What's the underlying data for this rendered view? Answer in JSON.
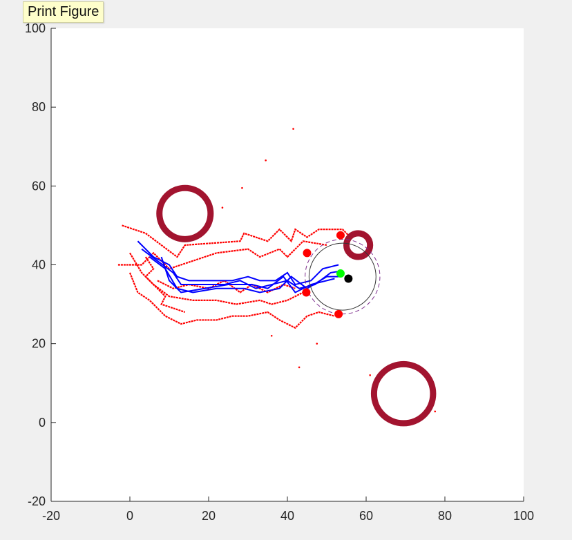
{
  "tooltip": {
    "text": "Print Figure"
  },
  "chart_data": {
    "type": "scatter",
    "title": "",
    "xlabel": "",
    "ylabel": "",
    "xlim": [
      -20,
      100
    ],
    "ylim": [
      -20,
      100
    ],
    "xticks": [
      -20,
      0,
      20,
      40,
      60,
      80,
      100
    ],
    "yticks": [
      -20,
      0,
      20,
      40,
      60,
      80,
      100
    ],
    "grid": false,
    "colors": {
      "red": "#ff0000",
      "blue": "#0000ff",
      "obstacle": "#a2142f",
      "green": "#00ff00",
      "black": "#000000",
      "circle": "#333333",
      "purple": "#7e2f8e"
    },
    "obstacles": [
      {
        "cx": 14,
        "cy": 53,
        "r": 6.5
      },
      {
        "cx": 58,
        "cy": 45,
        "r": 3
      },
      {
        "cx": 69.5,
        "cy": 7.3,
        "r": 7.5
      }
    ],
    "sensor_circle": {
      "cx": 54,
      "cy": 37,
      "r": 8.5
    },
    "sensor_arc": {
      "cx": 54,
      "cy": 37,
      "r": 9.5
    },
    "robot": {
      "x": 55.5,
      "y": 36.5
    },
    "goal": {
      "x": 53.5,
      "y": 37.8
    },
    "markers": [
      [
        53.5,
        47.5
      ],
      [
        45,
        43
      ],
      [
        44.8,
        33
      ],
      [
        53,
        27.5
      ]
    ],
    "stray_points": [
      [
        41.5,
        74.5
      ],
      [
        34.5,
        66.5
      ],
      [
        28.5,
        59.5
      ],
      [
        23.5,
        54.5
      ],
      [
        36,
        22
      ],
      [
        47.5,
        20
      ],
      [
        43,
        14
      ],
      [
        61,
        12
      ],
      [
        77.5,
        2.8
      ]
    ],
    "red_lines": [
      [
        [
          -2,
          50
        ],
        [
          4,
          48
        ],
        [
          8,
          45
        ],
        [
          12,
          42
        ],
        [
          14,
          45
        ],
        [
          28,
          46
        ],
        [
          29,
          48
        ],
        [
          35,
          46
        ],
        [
          38,
          49
        ],
        [
          41,
          46
        ],
        [
          42,
          49
        ],
        [
          45,
          47
        ],
        [
          48,
          49
        ],
        [
          54,
          49
        ],
        [
          56,
          47
        ]
      ],
      [
        [
          -3,
          40
        ],
        [
          3,
          40
        ],
        [
          6,
          43
        ],
        [
          10,
          39
        ],
        [
          16,
          41
        ],
        [
          22,
          43
        ],
        [
          30,
          44
        ],
        [
          33,
          42
        ],
        [
          38,
          44
        ],
        [
          40,
          42
        ],
        [
          44,
          46
        ],
        [
          50,
          45
        ]
      ],
      [
        [
          0,
          38
        ],
        [
          2,
          33
        ],
        [
          5,
          31
        ],
        [
          7,
          29
        ],
        [
          9,
          27
        ],
        [
          13,
          25
        ],
        [
          17,
          26
        ],
        [
          22,
          26
        ],
        [
          26,
          27
        ],
        [
          30,
          27
        ],
        [
          35,
          28
        ],
        [
          38,
          26
        ],
        [
          42,
          24
        ],
        [
          45,
          27
        ],
        [
          48,
          28
        ],
        [
          52,
          27
        ]
      ],
      [
        [
          0,
          43
        ],
        [
          3,
          38
        ],
        [
          6,
          35
        ],
        [
          10,
          32
        ],
        [
          16,
          31
        ],
        [
          22,
          31
        ],
        [
          27,
          30
        ],
        [
          33,
          31
        ],
        [
          36,
          30
        ],
        [
          40,
          31
        ],
        [
          44,
          33
        ]
      ],
      [
        [
          7,
          36
        ],
        [
          11,
          34
        ],
        [
          15,
          35
        ],
        [
          20,
          34
        ],
        [
          24,
          36
        ],
        [
          28,
          33
        ],
        [
          31,
          35
        ],
        [
          35,
          33
        ],
        [
          39,
          35
        ],
        [
          42,
          34
        ]
      ],
      [
        [
          4,
          42
        ],
        [
          6,
          39
        ],
        [
          4,
          37
        ],
        [
          7,
          34
        ],
        [
          9,
          32
        ],
        [
          8,
          30
        ],
        [
          11,
          29
        ],
        [
          14,
          28
        ]
      ]
    ],
    "blue_lines": [
      [
        [
          2,
          46
        ],
        [
          6,
          42
        ],
        [
          10,
          40
        ],
        [
          12,
          37
        ],
        [
          15,
          36
        ],
        [
          20,
          36
        ],
        [
          26,
          36
        ],
        [
          30,
          37
        ],
        [
          33,
          36
        ],
        [
          37,
          36
        ],
        [
          40,
          38
        ],
        [
          42,
          35
        ],
        [
          46,
          36
        ],
        [
          49,
          39
        ],
        [
          53,
          40
        ]
      ],
      [
        [
          3,
          44
        ],
        [
          7,
          41
        ],
        [
          11,
          38
        ],
        [
          13,
          35
        ],
        [
          18,
          35
        ],
        [
          24,
          35
        ],
        [
          28,
          36
        ],
        [
          32,
          34
        ],
        [
          36,
          35
        ],
        [
          40,
          36
        ],
        [
          43,
          34
        ],
        [
          47,
          35
        ],
        [
          51,
          38
        ],
        [
          54,
          38.5
        ]
      ],
      [
        [
          5,
          42
        ],
        [
          9,
          39
        ],
        [
          12,
          34
        ],
        [
          16,
          33
        ],
        [
          22,
          34
        ],
        [
          29,
          34
        ],
        [
          33,
          33
        ],
        [
          38,
          34
        ],
        [
          41,
          37
        ],
        [
          45,
          34
        ],
        [
          50,
          37
        ],
        [
          53,
          37
        ]
      ],
      [
        [
          8,
          42
        ],
        [
          10,
          36
        ],
        [
          13,
          33
        ],
        [
          19,
          34
        ],
        [
          25,
          35
        ],
        [
          31,
          35
        ],
        [
          35,
          34
        ],
        [
          39,
          37
        ],
        [
          42,
          33
        ],
        [
          46,
          35
        ],
        [
          52,
          36.5
        ]
      ]
    ]
  }
}
